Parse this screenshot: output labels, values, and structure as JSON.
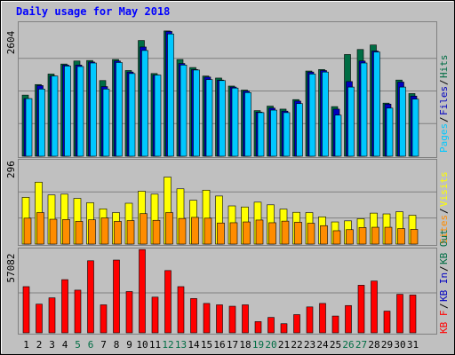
{
  "title": "Daily usage for May 2018",
  "colors": {
    "background": "#c0c0c0",
    "plot_bg": "#c0c0c0",
    "frame_dark": "#000000",
    "title": "#0000ff",
    "hits": "#006d44",
    "files": "#0000c0",
    "pages": "#00c8ff",
    "visits": "#ffff00",
    "sites": "#ff8c00",
    "kb_in": "#0000c0",
    "kb_out": "#006d44",
    "kb_f": "#ff0000",
    "weekend_label": "#006d44",
    "weekday_label": "#000000"
  },
  "chart_data": [
    {
      "type": "bar",
      "panel": "top",
      "ymax_label": "2604",
      "ylim": [
        0,
        2604
      ],
      "legend": [
        "Pages",
        "Files",
        "Hits"
      ],
      "categories": [
        "1",
        "2",
        "3",
        "4",
        "5",
        "6",
        "7",
        "8",
        "9",
        "10",
        "11",
        "12",
        "13",
        "14",
        "15",
        "16",
        "17",
        "18",
        "19",
        "20",
        "21",
        "22",
        "23",
        "24",
        "25",
        "26",
        "27",
        "28",
        "29",
        "30",
        "31"
      ],
      "weekend": [
        false,
        false,
        false,
        false,
        true,
        true,
        false,
        false,
        false,
        false,
        false,
        true,
        true,
        false,
        false,
        false,
        false,
        false,
        true,
        true,
        false,
        false,
        false,
        false,
        false,
        true,
        true,
        false,
        false,
        false,
        false
      ],
      "series": [
        {
          "name": "Hits",
          "values": [
            1220,
            1430,
            1640,
            1840,
            1900,
            1910,
            1510,
            1930,
            1710,
            2310,
            1650,
            2500,
            1930,
            1770,
            1600,
            1560,
            1400,
            1320,
            910,
            1000,
            940,
            1130,
            1700,
            1730,
            990,
            2030,
            2130,
            2220,
            1060,
            1520,
            1250
          ]
        },
        {
          "name": "Files",
          "values": [
            1150,
            1410,
            1600,
            1820,
            1820,
            1880,
            1390,
            1900,
            1680,
            2180,
            1620,
            2490,
            1850,
            1730,
            1580,
            1520,
            1380,
            1300,
            880,
            960,
            900,
            1100,
            1680,
            1710,
            940,
            1490,
            1900,
            2100,
            1040,
            1480,
            1200
          ]
        },
        {
          "name": "Pages",
          "values": [
            1150,
            1340,
            1600,
            1800,
            1790,
            1860,
            1340,
            1870,
            1650,
            2110,
            1620,
            2440,
            1820,
            1720,
            1530,
            1510,
            1360,
            1270,
            870,
            920,
            870,
            1050,
            1640,
            1680,
            820,
            1380,
            1860,
            2080,
            960,
            1380,
            1140
          ]
        }
      ]
    },
    {
      "type": "bar",
      "panel": "middle",
      "ymax_label": "296",
      "ylim": [
        0,
        296
      ],
      "legend": [
        "Visits",
        "Sites"
      ],
      "series": [
        {
          "name": "Visits",
          "values": [
            175,
            232,
            184,
            187,
            171,
            155,
            132,
            118,
            153,
            198,
            187,
            251,
            207,
            164,
            202,
            180,
            143,
            139,
            157,
            147,
            131,
            119,
            118,
            102,
            83,
            87,
            95,
            116,
            113,
            121,
            108
          ]
        },
        {
          "name": "Sites",
          "values": [
            97,
            118,
            93,
            92,
            85,
            91,
            98,
            85,
            88,
            114,
            89,
            118,
            96,
            100,
            97,
            79,
            80,
            83,
            90,
            80,
            86,
            82,
            78,
            69,
            50,
            54,
            62,
            63,
            63,
            58,
            55
          ]
        }
      ]
    },
    {
      "type": "bar",
      "panel": "bottom",
      "ymax_label": "57082",
      "ylim": [
        0,
        57082
      ],
      "legend": [
        "KB F",
        "KB In",
        "KB Out"
      ],
      "series": [
        {
          "name": "KB F",
          "values": [
            33000,
            20500,
            25000,
            38000,
            30500,
            51500,
            20000,
            52000,
            29500,
            59500,
            25500,
            44500,
            33000,
            24500,
            21000,
            20000,
            19000,
            20000,
            8000,
            11000,
            6500,
            13000,
            18500,
            21000,
            12000,
            19500,
            34000,
            37000,
            15500,
            27500,
            27000
          ]
        },
        {
          "name": "KB In",
          "values": [
            0,
            0,
            0,
            0,
            0,
            0,
            0,
            0,
            0,
            0,
            0,
            0,
            0,
            0,
            0,
            0,
            0,
            0,
            0,
            0,
            0,
            0,
            0,
            0,
            0,
            0,
            0,
            0,
            0,
            0,
            0
          ]
        },
        {
          "name": "KB Out",
          "values": [
            0,
            0,
            0,
            0,
            0,
            0,
            0,
            0,
            0,
            0,
            0,
            0,
            0,
            0,
            0,
            0,
            0,
            0,
            0,
            0,
            0,
            0,
            0,
            0,
            0,
            0,
            0,
            0,
            0,
            0,
            0
          ]
        }
      ]
    }
  ]
}
